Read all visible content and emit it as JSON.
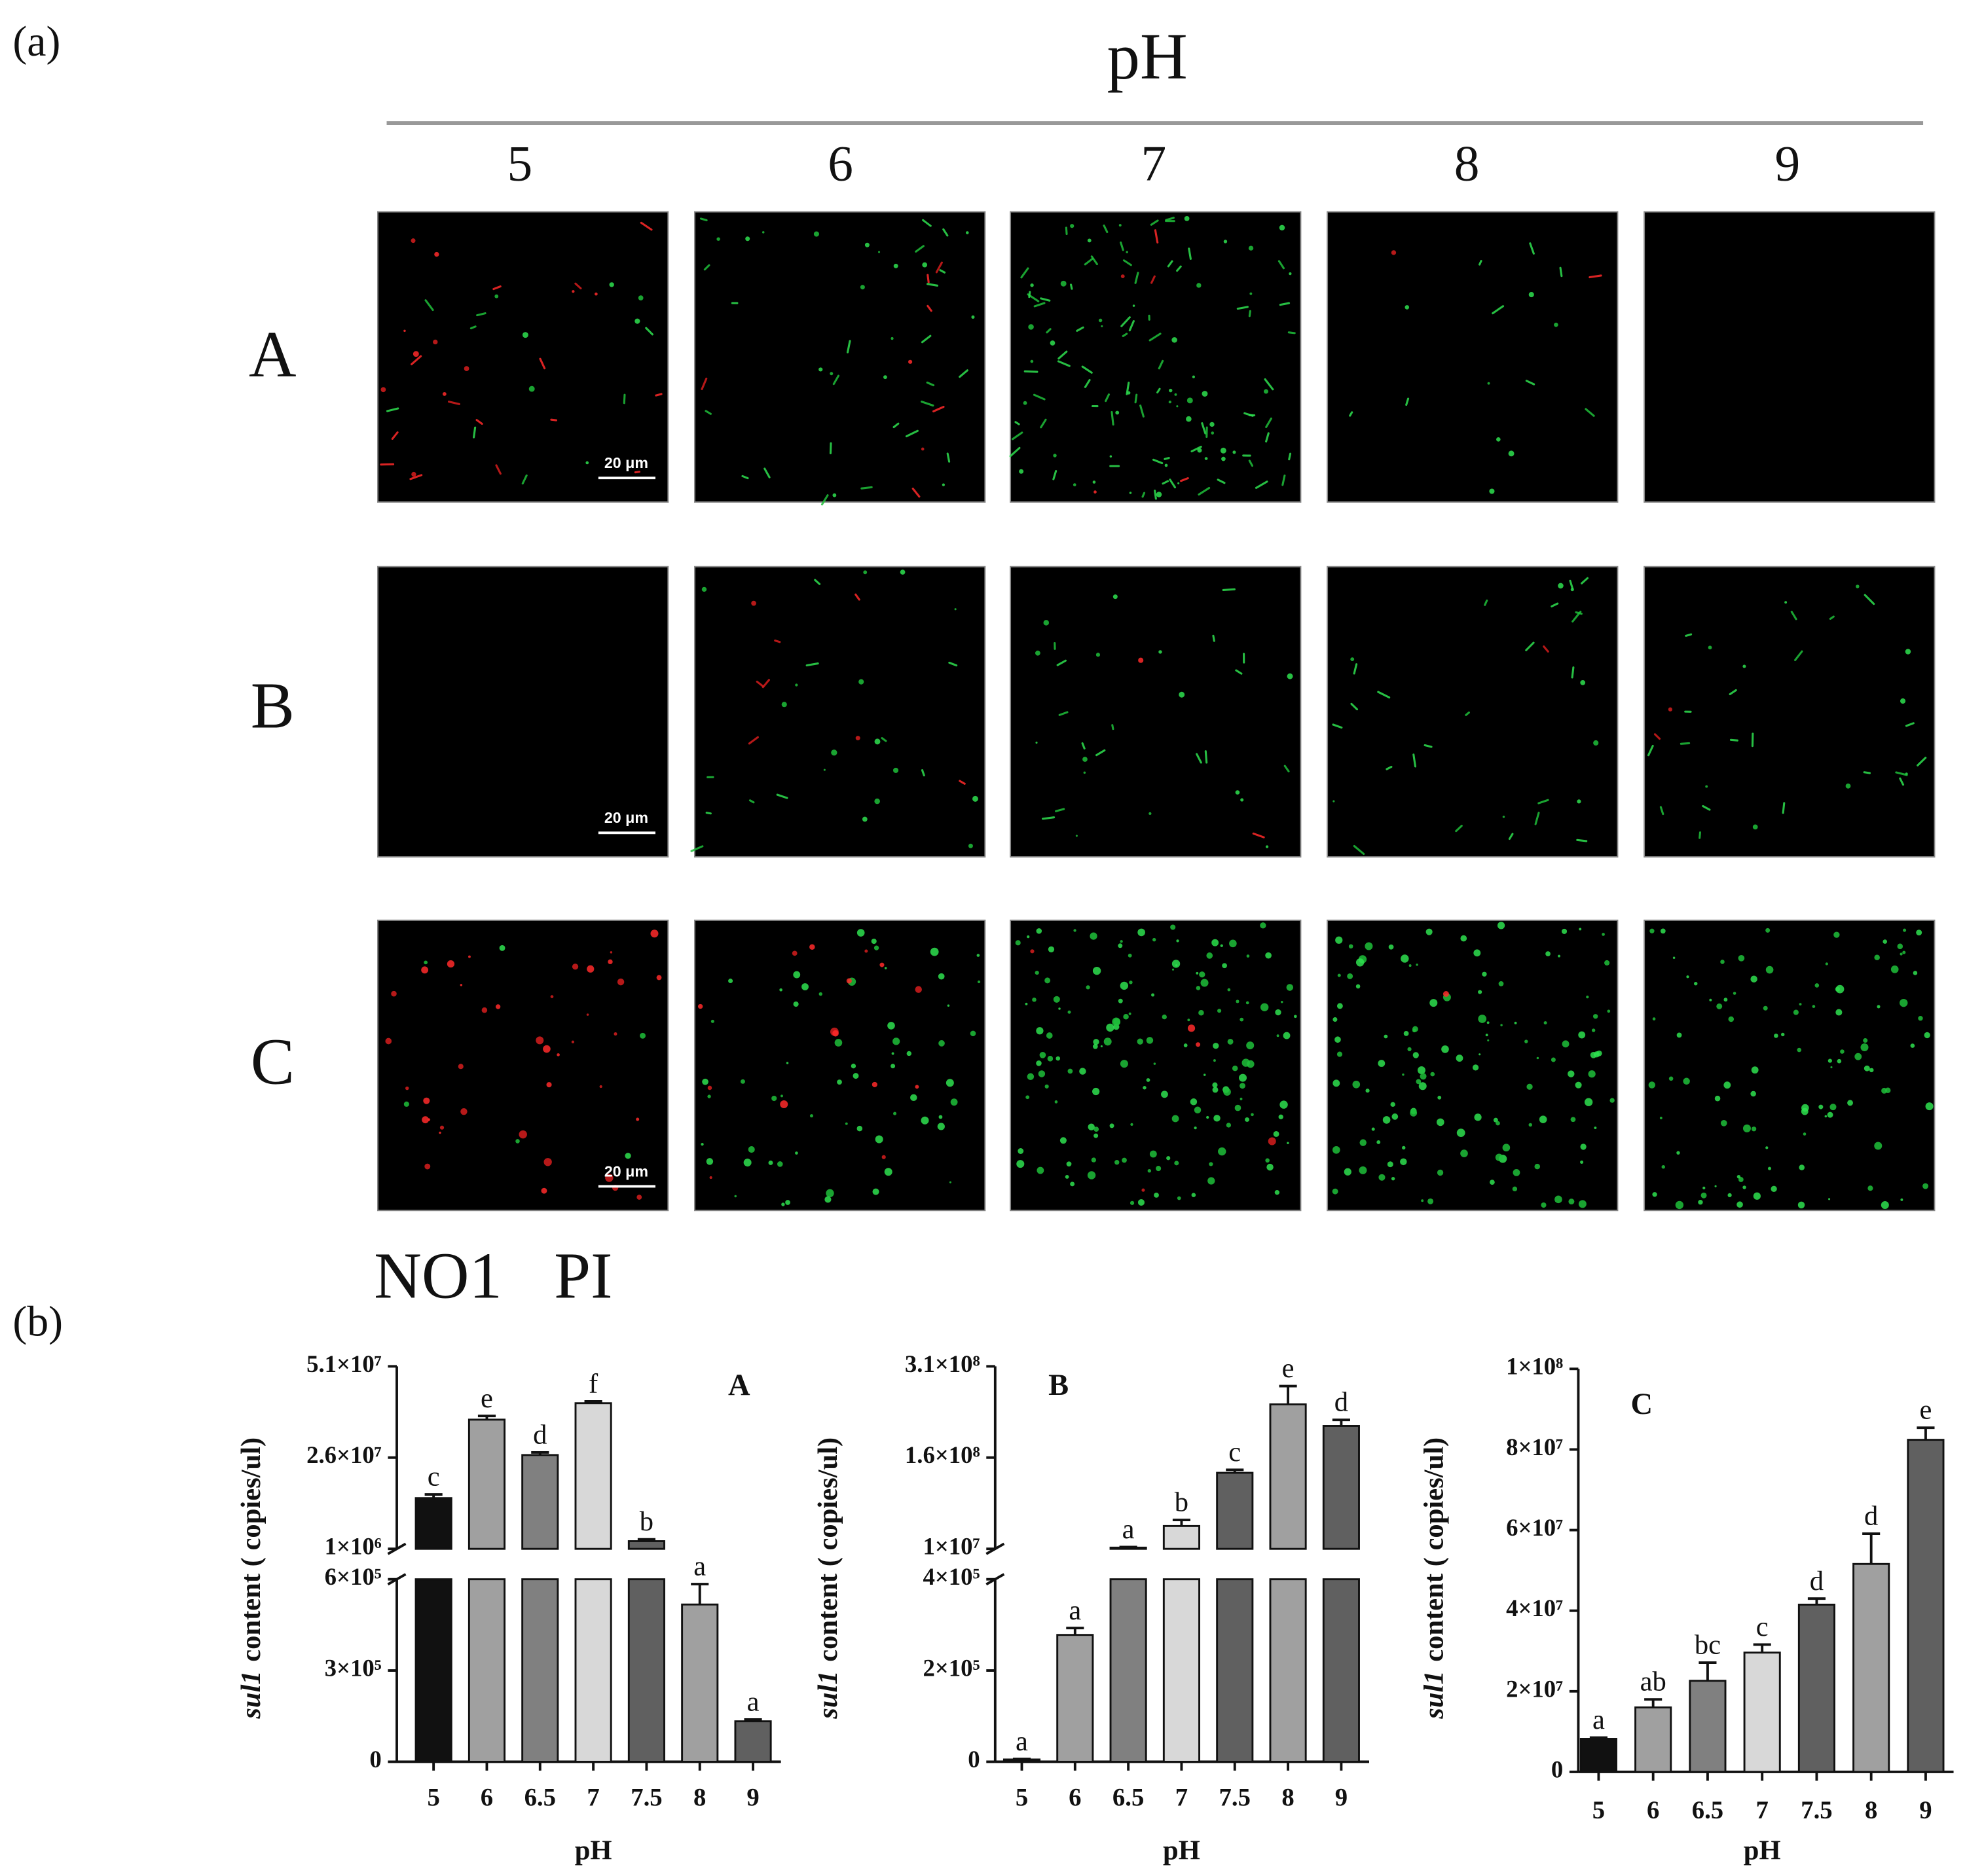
{
  "panel_a": {
    "label": "(a)",
    "axis_title": "pH",
    "columns": [
      "5",
      "6",
      "7",
      "8",
      "9"
    ],
    "rows": [
      "A",
      "B",
      "C"
    ],
    "scale_bars": [
      "20 μm",
      "20 μm",
      "20 μm"
    ]
  },
  "legend": {
    "items": [
      "NO1",
      "PI"
    ],
    "colors": [
      "#22dd44",
      "#ee3333"
    ]
  },
  "panel_b": {
    "label": "(b)"
  },
  "chart_data": [
    {
      "type": "bar",
      "title": "A",
      "xlabel": "pH",
      "ylabel": {
        "gene": "sul1",
        "text": "content ( copies/ul)"
      },
      "categories": [
        "5",
        "6",
        "6.5",
        "7",
        "7.5",
        "8",
        "9"
      ],
      "values": [
        14900000,
        36400000,
        26700000,
        40900000,
        3100000,
        517000,
        133000
      ],
      "errors": [
        1000000,
        1000000,
        700000,
        500000,
        500000,
        67000,
        6000
      ],
      "annotations": [
        "c",
        "e",
        "d",
        "f",
        "b",
        "a",
        "a"
      ],
      "colors": [
        "#111111",
        "#a0a0a0",
        "#808080",
        "#d8d8d8",
        "#606060",
        "#a0a0a0",
        "#606060"
      ],
      "segments": [
        {
          "ylim": [
            0,
            600000
          ],
          "yticks": [
            0,
            {
              "value": 300000,
              "label": "3×10⁵"
            },
            {
              "value": 600000,
              "label": "6×10⁵"
            }
          ]
        },
        {
          "ylim": [
            1000000,
            51000000
          ],
          "yticks": [
            {
              "value": 1000000,
              "label": "1×10⁶"
            },
            {
              "value": 26000000,
              "label": "2.6×10⁷"
            },
            {
              "value": 51000000,
              "label": "5.1×10⁷"
            }
          ]
        }
      ]
    },
    {
      "type": "bar",
      "title": "B",
      "xlabel": "pH",
      "ylabel": {
        "gene": "sul1",
        "text": "content ( copies/ul)"
      },
      "categories": [
        "5",
        "6",
        "6.5",
        "7",
        "7.5",
        "8",
        "9"
      ],
      "values": [
        5000,
        278000,
        12000000,
        47500000,
        135000000,
        247500000,
        212000000
      ],
      "errors": [
        1000,
        15000,
        1000000,
        10000000,
        5000000,
        30000000,
        10000000
      ],
      "annotations": [
        "a",
        "a",
        "a",
        "b",
        "c",
        "e",
        "d"
      ],
      "colors": [
        "#111111",
        "#a0a0a0",
        "#808080",
        "#d8d8d8",
        "#606060",
        "#a0a0a0",
        "#606060"
      ],
      "segments": [
        {
          "ylim": [
            0,
            400000
          ],
          "yticks": [
            0,
            {
              "value": 200000,
              "label": "2×10⁵"
            },
            {
              "value": 400000,
              "label": "4×10⁵"
            }
          ]
        },
        {
          "ylim": [
            10000000,
            310000000
          ],
          "yticks": [
            {
              "value": 10000000,
              "label": "1×10⁷"
            },
            {
              "value": 160000000,
              "label": "1.6×10⁸"
            },
            {
              "value": 310000000,
              "label": "3.1×10⁸"
            }
          ]
        }
      ]
    },
    {
      "type": "bar",
      "title": "C",
      "xlabel": "pH",
      "ylabel": {
        "gene": "sul1",
        "text": "content ( copies/ul)"
      },
      "categories": [
        "5",
        "6",
        "6.5",
        "7",
        "7.5",
        "8",
        "9"
      ],
      "values": [
        8200000,
        16000000,
        22600000,
        29600000,
        41500000,
        51600000,
        82400000
      ],
      "errors": [
        300000,
        2000000,
        4500000,
        2000000,
        1500000,
        7500000,
        3000000
      ],
      "annotations": [
        "a",
        "ab",
        "bc",
        "c",
        "d",
        "d",
        "e"
      ],
      "colors": [
        "#111111",
        "#a0a0a0",
        "#808080",
        "#d8d8d8",
        "#606060",
        "#a0a0a0",
        "#606060"
      ],
      "ylim": [
        0,
        100000000
      ],
      "yticks": [
        0,
        {
          "value": 20000000,
          "label": "2×10⁷"
        },
        {
          "value": 40000000,
          "label": "4×10⁷"
        },
        {
          "value": 60000000,
          "label": "6×10⁷"
        },
        {
          "value": 80000000,
          "label": "8×10⁷"
        },
        {
          "value": 100000000,
          "label": "1×10⁸"
        }
      ]
    }
  ]
}
